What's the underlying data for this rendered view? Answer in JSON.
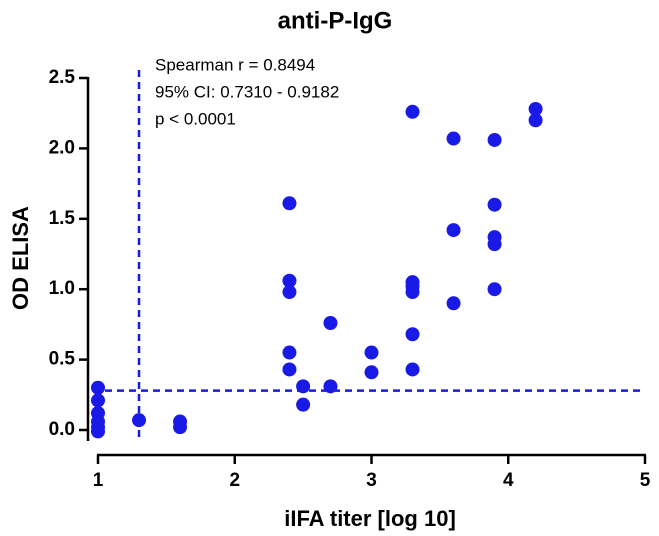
{
  "chart_data": {
    "type": "scatter",
    "title": "anti-P-IgG",
    "xlabel": "iIFA titer [log 10]",
    "ylabel": "OD ELISA",
    "annotations": [
      "Spearman r = 0.8494",
      "95% CI: 0.7310 - 0.9182",
      "p < 0.0001"
    ],
    "x": [
      1,
      1,
      1,
      1,
      1,
      1,
      1.3,
      1.6,
      1.6,
      2.4,
      2.4,
      2.4,
      2.4,
      2.4,
      2.5,
      2.5,
      2.7,
      2.7,
      3,
      3,
      3.3,
      3.3,
      3.3,
      3.3,
      3.3,
      3.3,
      3.6,
      3.6,
      3.6,
      3.9,
      3.9,
      3.9,
      3.9,
      3.9,
      4.2,
      4.2
    ],
    "values": [
      0.3,
      0.21,
      0.12,
      0.06,
      0.02,
      -0.01,
      0.07,
      0.06,
      0.02,
      1.61,
      1.06,
      0.98,
      0.55,
      0.43,
      0.31,
      0.18,
      0.76,
      0.31,
      0.55,
      0.41,
      2.26,
      1.05,
      1.02,
      0.98,
      0.68,
      0.43,
      2.07,
      1.42,
      0.9,
      2.06,
      1.6,
      1.37,
      1.32,
      1.0,
      2.28,
      2.2
    ],
    "color": "#1a1ae6",
    "vline": 1.3,
    "hline": 0.28,
    "xlim": [
      1,
      5
    ],
    "xticks": [
      1,
      2,
      3,
      4,
      5
    ],
    "ylim": [
      0,
      2.5
    ],
    "yticks": [
      {
        "value": 0,
        "label": "0.0"
      },
      0.5,
      {
        "value": 1,
        "label": "1.0"
      },
      1.5,
      {
        "value": 2,
        "label": "2.0"
      },
      2.5
    ]
  }
}
